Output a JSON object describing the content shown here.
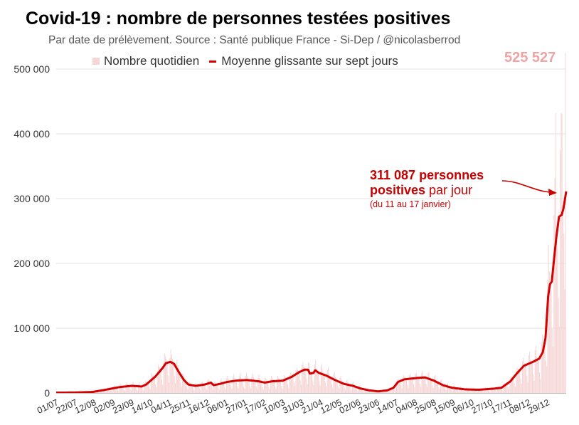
{
  "chart_data": {
    "type": "bar+line",
    "title": "Covid-19 : nombre de personnes testées positives",
    "subtitle": "Par date de prélèvement. Source : Santé publique France - Si-Dep / @nicolasberrod",
    "legend": {
      "placement": "top-center",
      "entries": [
        {
          "name": "Nombre quotidien",
          "type": "bar",
          "color": "#f6d5d5"
        },
        {
          "name": "Moyenne glissante sur sept jours",
          "type": "line",
          "color": "#d50000"
        }
      ]
    },
    "ylim": [
      0,
      500000
    ],
    "yticks": [
      {
        "value": 0,
        "label": "0"
      },
      {
        "value": 100000,
        "label": "100 000"
      },
      {
        "value": 200000,
        "label": "200 000"
      },
      {
        "value": 300000,
        "label": "300 000"
      },
      {
        "value": 400000,
        "label": "400 000"
      },
      {
        "value": 500000,
        "label": "500 000"
      }
    ],
    "grid": true,
    "x_start": "2020-07-01",
    "x_days": 567,
    "xticks": [
      {
        "day": 0,
        "label": "01/07"
      },
      {
        "day": 21,
        "label": "22/07"
      },
      {
        "day": 42,
        "label": "12/08"
      },
      {
        "day": 63,
        "label": "02/09"
      },
      {
        "day": 84,
        "label": "23/09"
      },
      {
        "day": 105,
        "label": "14/10"
      },
      {
        "day": 126,
        "label": "04/11"
      },
      {
        "day": 147,
        "label": "25/11"
      },
      {
        "day": 168,
        "label": "16/12"
      },
      {
        "day": 189,
        "label": "06/01"
      },
      {
        "day": 210,
        "label": "27/01"
      },
      {
        "day": 231,
        "label": "17/02"
      },
      {
        "day": 252,
        "label": "10/03"
      },
      {
        "day": 273,
        "label": "31/03"
      },
      {
        "day": 294,
        "label": "21/04"
      },
      {
        "day": 315,
        "label": "12/05"
      },
      {
        "day": 336,
        "label": "02/06"
      },
      {
        "day": 357,
        "label": "23/06"
      },
      {
        "day": 378,
        "label": "14/07"
      },
      {
        "day": 399,
        "label": "04/08"
      },
      {
        "day": 420,
        "label": "25/08"
      },
      {
        "day": 441,
        "label": "15/09"
      },
      {
        "day": 462,
        "label": "06/10"
      },
      {
        "day": 483,
        "label": "27/10"
      },
      {
        "day": 504,
        "label": "17/11"
      },
      {
        "day": 525,
        "label": "08/12"
      },
      {
        "day": 546,
        "label": "29/12"
      }
    ],
    "moving_average_keypoints": [
      [
        0,
        500
      ],
      [
        20,
        700
      ],
      [
        40,
        1500
      ],
      [
        55,
        5000
      ],
      [
        70,
        9000
      ],
      [
        84,
        11000
      ],
      [
        95,
        10000
      ],
      [
        100,
        13000
      ],
      [
        110,
        25000
      ],
      [
        118,
        38000
      ],
      [
        122,
        46000
      ],
      [
        127,
        48000
      ],
      [
        131,
        45000
      ],
      [
        136,
        33000
      ],
      [
        142,
        20000
      ],
      [
        147,
        13000
      ],
      [
        155,
        11000
      ],
      [
        165,
        13000
      ],
      [
        172,
        16000
      ],
      [
        175,
        12000
      ],
      [
        182,
        14000
      ],
      [
        190,
        17000
      ],
      [
        200,
        19000
      ],
      [
        212,
        20000
      ],
      [
        225,
        18000
      ],
      [
        232,
        16000
      ],
      [
        240,
        18000
      ],
      [
        252,
        19000
      ],
      [
        262,
        25000
      ],
      [
        270,
        32000
      ],
      [
        276,
        36000
      ],
      [
        280,
        36000
      ],
      [
        282,
        30000
      ],
      [
        286,
        31000
      ],
      [
        288,
        35000
      ],
      [
        292,
        31000
      ],
      [
        300,
        27000
      ],
      [
        310,
        20000
      ],
      [
        320,
        14000
      ],
      [
        330,
        11000
      ],
      [
        338,
        7000
      ],
      [
        348,
        4000
      ],
      [
        358,
        2500
      ],
      [
        368,
        4000
      ],
      [
        375,
        8000
      ],
      [
        380,
        17000
      ],
      [
        387,
        21000
      ],
      [
        400,
        23000
      ],
      [
        410,
        24000
      ],
      [
        420,
        19000
      ],
      [
        430,
        12000
      ],
      [
        440,
        8000
      ],
      [
        455,
        5500
      ],
      [
        470,
        5000
      ],
      [
        485,
        6500
      ],
      [
        495,
        8000
      ],
      [
        505,
        18000
      ],
      [
        512,
        30000
      ],
      [
        520,
        42000
      ],
      [
        530,
        48000
      ],
      [
        537,
        53000
      ],
      [
        541,
        63000
      ],
      [
        544,
        85000
      ],
      [
        547,
        150000
      ],
      [
        549,
        168000
      ],
      [
        551,
        172000
      ],
      [
        553,
        200000
      ],
      [
        556,
        240000
      ],
      [
        559,
        272000
      ],
      [
        562,
        275000
      ],
      [
        564,
        285000
      ],
      [
        567,
        311087
      ]
    ],
    "daily_peaks": [
      {
        "day": 555,
        "value": 432000
      },
      {
        "day": 562,
        "value": 430000
      },
      {
        "day": 566,
        "value": 525527
      }
    ],
    "annotations": {
      "peak_value_label": "525 527",
      "latest_average": {
        "line1": "311 087 personnes",
        "line2_bold": "positives",
        "line2_rest": " par jour",
        "line3": "(du 11 au 17 janvier)"
      }
    }
  }
}
